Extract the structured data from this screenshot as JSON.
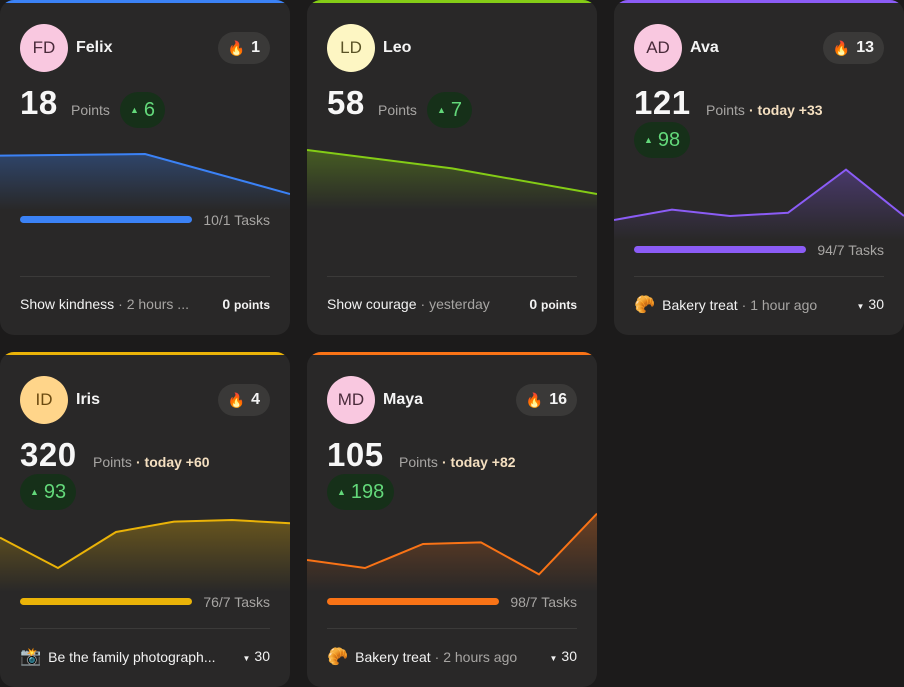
{
  "cards": [
    {
      "initials": "FD",
      "name": "Felix",
      "streak": "1",
      "points": "18",
      "points_label": "Points",
      "today": "",
      "delta": "6",
      "tasks": "10/1 Tasks",
      "activity_emoji": "",
      "activity_name": "Show kindness",
      "activity_time": "· 2 hours ...",
      "reward": "0",
      "reward_unit": "points",
      "accent": "#3b82f6",
      "avatar_bg": "#f9c8e0",
      "progress": 1.0,
      "chart": [
        0.68,
        0.7,
        0.2
      ]
    },
    {
      "initials": "LD",
      "name": "Leo",
      "streak": "",
      "points": "58",
      "points_label": "Points",
      "today": "",
      "delta": "7",
      "tasks": "",
      "activity_emoji": "",
      "activity_name": "Show courage",
      "activity_time": "· yesterday",
      "reward": "0",
      "reward_unit": "points",
      "accent": "#84cc16",
      "avatar_bg": "#fdf6c3",
      "progress": 0,
      "chart": [
        0.75,
        0.52,
        0.2
      ]
    },
    {
      "initials": "AD",
      "name": "Ava",
      "streak": "13",
      "points": "121",
      "points_label": "Points",
      "today": "· today +33",
      "delta": "98",
      "tasks": "94/7 Tasks",
      "activity_emoji": "🥐",
      "activity_name": "Bakery treat",
      "activity_time": "· 1 hour ago",
      "reward": "30",
      "reward_unit": "",
      "accent": "#8b5cf6",
      "avatar_bg": "#f9c8e0",
      "progress": 1.0,
      "chart": [
        0.25,
        0.38,
        0.3,
        0.34,
        0.88,
        0.3
      ]
    },
    {
      "initials": "ID",
      "name": "Iris",
      "streak": "4",
      "points": "320",
      "points_label": "Points",
      "today": "· today +60",
      "delta": "93",
      "tasks": "76/7 Tasks",
      "activity_emoji": "📸",
      "activity_name": "Be the family photograph...",
      "activity_time": "",
      "reward": "30",
      "reward_unit": "",
      "accent": "#eab308",
      "avatar_bg": "#ffd58a",
      "progress": 1.0,
      "chart": [
        0.68,
        0.3,
        0.75,
        0.88,
        0.9,
        0.86
      ]
    },
    {
      "initials": "MD",
      "name": "Maya",
      "streak": "16",
      "points": "105",
      "points_label": "Points",
      "today": "· today +82",
      "delta": "198",
      "tasks": "98/7 Tasks",
      "activity_emoji": "🥐",
      "activity_name": "Bakery treat",
      "activity_time": "· 2 hours ago",
      "reward": "30",
      "reward_unit": "",
      "accent": "#f97316",
      "avatar_bg": "#f9c8e0",
      "progress": 1.0,
      "chart": [
        0.4,
        0.3,
        0.6,
        0.62,
        0.22,
        0.98
      ]
    }
  ]
}
